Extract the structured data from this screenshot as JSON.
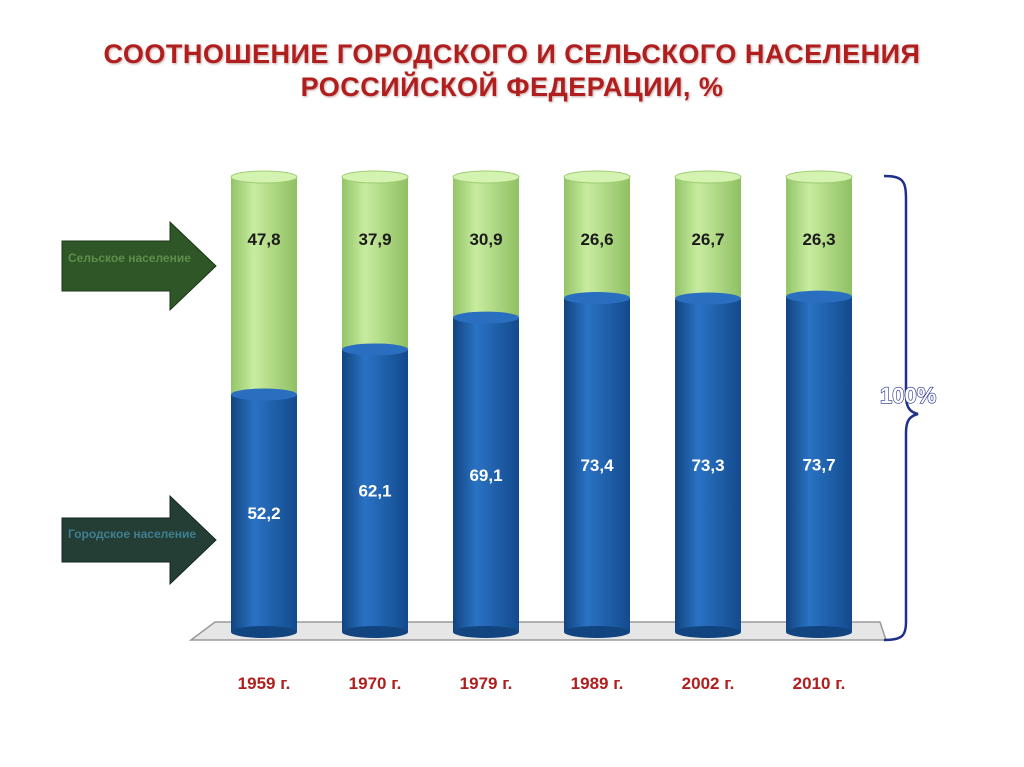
{
  "title": {
    "line1": "СООТНОШЕНИЕ ГОРОДСКОГО И СЕЛЬСКОГО НАСЕЛЕНИЯ",
    "line2": "РОССИЙСКОЙ ФЕДЕРАЦИИ, %"
  },
  "legend": {
    "rural": "Сельское население",
    "urban": "Городское население"
  },
  "total_label": "100%",
  "colors": {
    "urban": "#1c5fae",
    "urban_dark": "#12447f",
    "rural": "#b7e08d",
    "rural_dark": "#8fbf63",
    "arrow_rural": "#2f5626",
    "arrow_urban": "#243e36",
    "title": "#b01e1e",
    "total": "#1f2f8a"
  },
  "chart_data": {
    "type": "bar",
    "stacked": true,
    "categories": [
      "1959 г.",
      "1970 г.",
      "1979 г.",
      "1989 г.",
      "2002 г.",
      "2010 г."
    ],
    "series": [
      {
        "name": "Городское население",
        "values": [
          52.2,
          62.1,
          69.1,
          73.4,
          73.3,
          73.7
        ],
        "labels": [
          "52,2",
          "62,1",
          "69,1",
          "73,4",
          "73,3",
          "73,7"
        ]
      },
      {
        "name": "Сельское население",
        "values": [
          47.8,
          37.9,
          30.9,
          26.6,
          26.7,
          26.3
        ],
        "labels": [
          "47,8",
          "37,9",
          "30,9",
          "26,6",
          "26,7",
          "26,3"
        ]
      }
    ],
    "ylim": [
      0,
      100
    ],
    "grid": false
  }
}
